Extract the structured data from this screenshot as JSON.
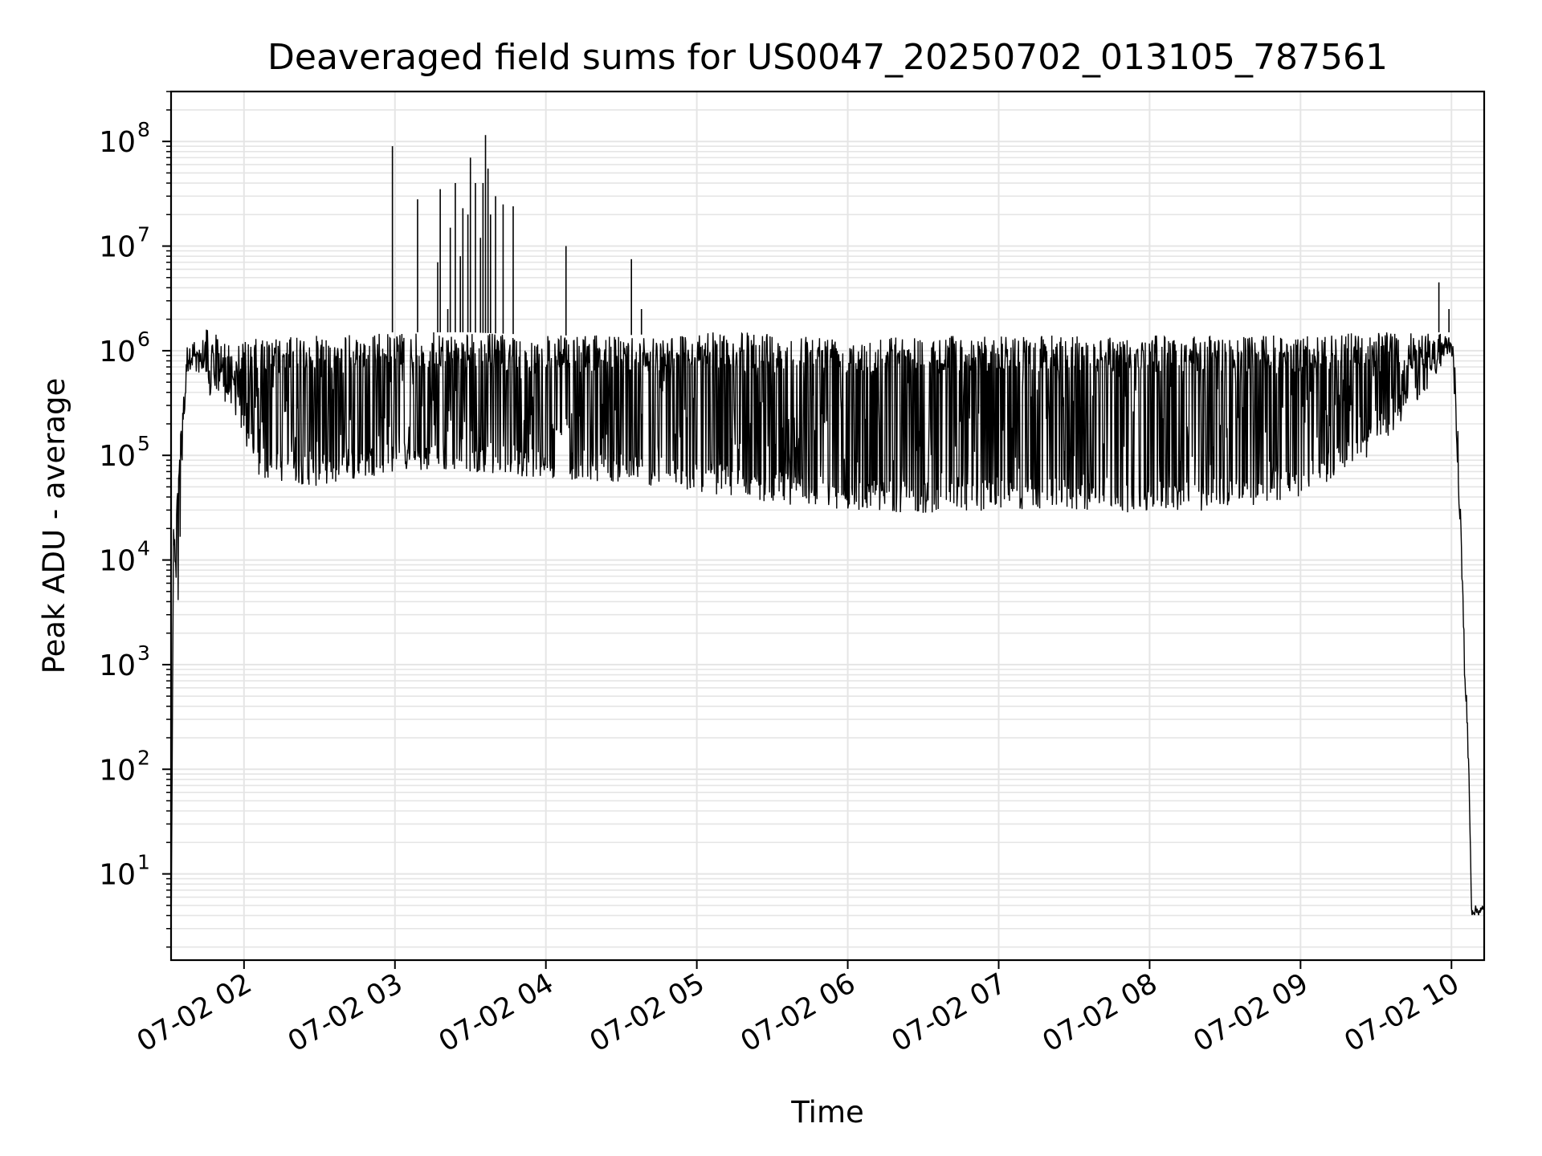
{
  "chart_data": {
    "type": "line",
    "title": "Deaveraged field sums for US0047_20250702_013105_787561",
    "xlabel": "Time",
    "ylabel": "Peak ADU - average",
    "yscale": "log",
    "ylim": [
      1.5,
      300000000
    ],
    "xlim": [
      "2025-07-02 01:31",
      "2025-07-02 10:13"
    ],
    "grid": true,
    "line_color": "#000000",
    "grid_color": "#e5e5e5",
    "x_ticks": [
      {
        "label": "07-02 02",
        "time": "2025-07-02 02:00"
      },
      {
        "label": "07-02 03",
        "time": "2025-07-02 03:00"
      },
      {
        "label": "07-02 04",
        "time": "2025-07-02 04:00"
      },
      {
        "label": "07-02 05",
        "time": "2025-07-02 05:00"
      },
      {
        "label": "07-02 06",
        "time": "2025-07-02 06:00"
      },
      {
        "label": "07-02 07",
        "time": "2025-07-02 07:00"
      },
      {
        "label": "07-02 08",
        "time": "2025-07-02 08:00"
      },
      {
        "label": "07-02 09",
        "time": "2025-07-02 09:00"
      },
      {
        "label": "07-02 10",
        "time": "2025-07-02 10:00"
      }
    ],
    "y_ticks": [
      {
        "base": "10",
        "exp": "1",
        "value": 10
      },
      {
        "base": "10",
        "exp": "2",
        "value": 100
      },
      {
        "base": "10",
        "exp": "3",
        "value": 1000
      },
      {
        "base": "10",
        "exp": "4",
        "value": 10000
      },
      {
        "base": "10",
        "exp": "5",
        "value": 100000
      },
      {
        "base": "10",
        "exp": "6",
        "value": 1000000
      },
      {
        "base": "10",
        "exp": "7",
        "value": 10000000
      },
      {
        "base": "10",
        "exp": "8",
        "value": 100000000
      }
    ],
    "series": [
      {
        "envelope": [
          {
            "time": "2025-07-02 01:31",
            "low": 2,
            "high": 2
          },
          {
            "time": "2025-07-02 01:32",
            "low": 12000,
            "high": 25000
          },
          {
            "time": "2025-07-02 01:34",
            "low": 2800,
            "high": 80000
          },
          {
            "time": "2025-07-02 01:36",
            "low": 200000,
            "high": 800000
          },
          {
            "time": "2025-07-02 01:38",
            "low": 700000,
            "high": 1300000
          },
          {
            "time": "2025-07-02 01:45",
            "low": 350000,
            "high": 1600000
          },
          {
            "time": "2025-07-02 01:55",
            "low": 300000,
            "high": 1200000
          },
          {
            "time": "2025-07-02 02:05",
            "low": 60000,
            "high": 1300000
          },
          {
            "time": "2025-07-02 02:30",
            "low": 50000,
            "high": 1400000
          },
          {
            "time": "2025-07-02 03:00",
            "low": 70000,
            "high": 1500000
          },
          {
            "time": "2025-07-02 03:30",
            "low": 70000,
            "high": 1500000
          },
          {
            "time": "2025-07-02 04:00",
            "low": 60000,
            "high": 1400000
          },
          {
            "time": "2025-07-02 04:30",
            "low": 55000,
            "high": 1400000
          },
          {
            "time": "2025-07-02 05:00",
            "low": 45000,
            "high": 1500000
          },
          {
            "time": "2025-07-02 05:30",
            "low": 35000,
            "high": 1500000
          },
          {
            "time": "2025-07-02 06:00",
            "low": 30000,
            "high": 1400000
          },
          {
            "time": "2025-07-02 06:30",
            "low": 28000,
            "high": 1400000
          },
          {
            "time": "2025-07-02 07:00",
            "low": 30000,
            "high": 1400000
          },
          {
            "time": "2025-07-02 07:30",
            "low": 30000,
            "high": 1400000
          },
          {
            "time": "2025-07-02 08:00",
            "low": 28000,
            "high": 1400000
          },
          {
            "time": "2025-07-02 08:30",
            "low": 30000,
            "high": 1400000
          },
          {
            "time": "2025-07-02 09:00",
            "low": 40000,
            "high": 1400000
          },
          {
            "time": "2025-07-02 09:30",
            "low": 100000,
            "high": 1500000
          },
          {
            "time": "2025-07-02 09:55",
            "low": 600000,
            "high": 1500000
          },
          {
            "time": "2025-07-02 10:00",
            "low": 1000000,
            "high": 1500000
          },
          {
            "time": "2025-07-02 10:02",
            "low": 150000,
            "high": 500000
          },
          {
            "time": "2025-07-02 10:05",
            "low": 1000,
            "high": 3000
          },
          {
            "time": "2025-07-02 10:07",
            "low": 60,
            "high": 100
          },
          {
            "time": "2025-07-02 10:08",
            "low": 4,
            "high": 5
          },
          {
            "time": "2025-07-02 10:13",
            "low": 4,
            "high": 5
          }
        ],
        "spikes": [
          {
            "time": "2025-07-02 02:59",
            "value": 90000000
          },
          {
            "time": "2025-07-02 03:09",
            "value": 28000000
          },
          {
            "time": "2025-07-02 03:17",
            "value": 7000000
          },
          {
            "time": "2025-07-02 03:18",
            "value": 35000000
          },
          {
            "time": "2025-07-02 03:21",
            "value": 2500000
          },
          {
            "time": "2025-07-02 03:22",
            "value": 15000000
          },
          {
            "time": "2025-07-02 03:24",
            "value": 40000000
          },
          {
            "time": "2025-07-02 03:26",
            "value": 8000000
          },
          {
            "time": "2025-07-02 03:27",
            "value": 23000000
          },
          {
            "time": "2025-07-02 03:29",
            "value": 20000000
          },
          {
            "time": "2025-07-02 03:30",
            "value": 70000000
          },
          {
            "time": "2025-07-02 03:32",
            "value": 40000000
          },
          {
            "time": "2025-07-02 03:34",
            "value": 12000000
          },
          {
            "time": "2025-07-02 03:35",
            "value": 40000000
          },
          {
            "time": "2025-07-02 03:36",
            "value": 115000000
          },
          {
            "time": "2025-07-02 03:37",
            "value": 55000000
          },
          {
            "time": "2025-07-02 03:38",
            "value": 20000000
          },
          {
            "time": "2025-07-02 03:40",
            "value": 30000000
          },
          {
            "time": "2025-07-02 03:43",
            "value": 25000000
          },
          {
            "time": "2025-07-02 03:47",
            "value": 24000000
          },
          {
            "time": "2025-07-02 04:08",
            "value": 10000000
          },
          {
            "time": "2025-07-02 04:34",
            "value": 7500000
          },
          {
            "time": "2025-07-02 04:38",
            "value": 2500000
          },
          {
            "time": "2025-07-02 09:55",
            "value": 4500000
          },
          {
            "time": "2025-07-02 09:59",
            "value": 2500000
          }
        ]
      }
    ]
  }
}
